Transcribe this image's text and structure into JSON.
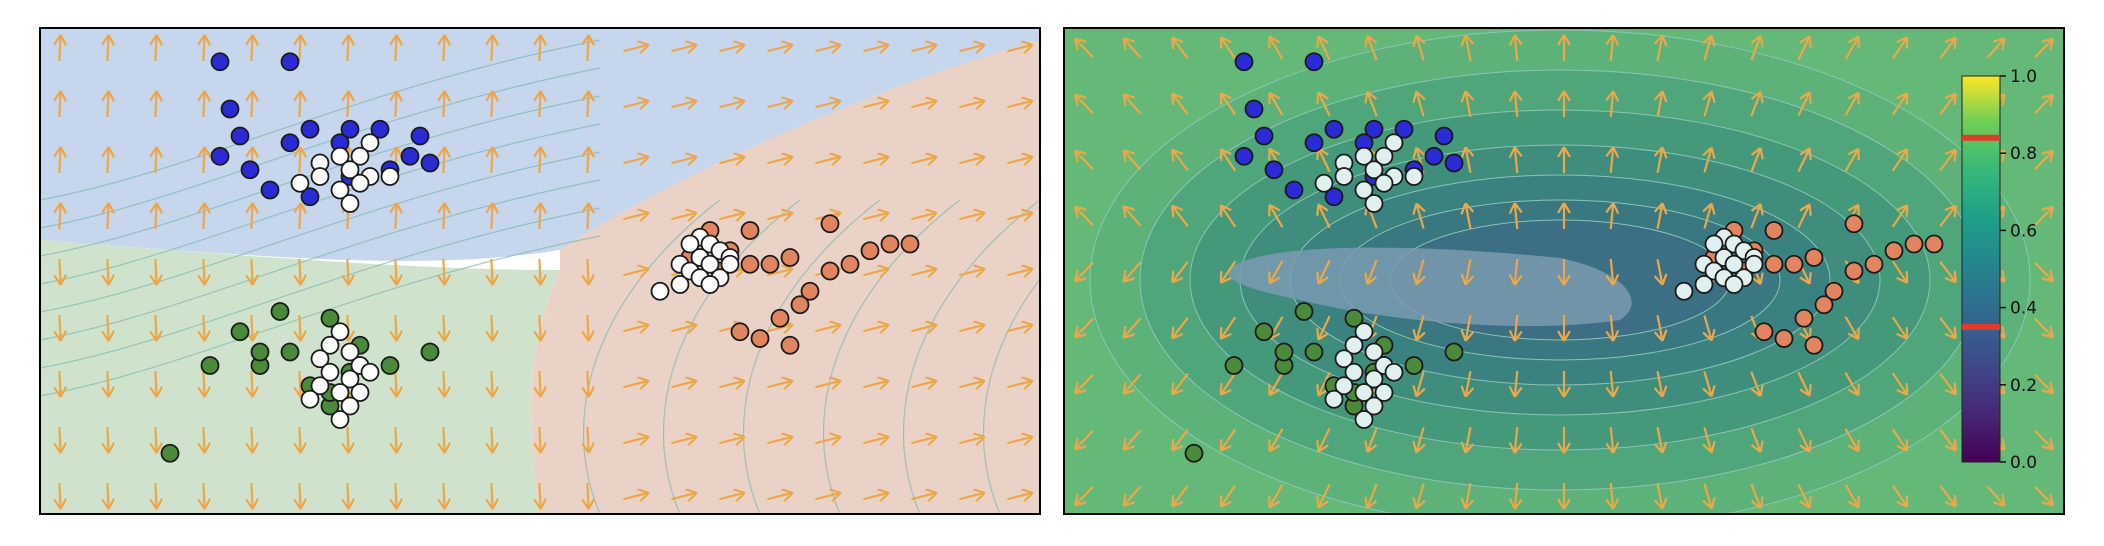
{
  "chart_data": [
    {
      "type": "scatter",
      "title": "",
      "xlabel": "",
      "ylabel": "",
      "background": "decision regions (blue, green, orange) with contour lines and an orange vector field",
      "region_colors": [
        "#c6d6ec",
        "#cfe3cc",
        "#ead2c6"
      ],
      "vector_color": "#eaa84a",
      "series": [
        {
          "color": "#2b2bd6",
          "points": [
            [
              -1.6,
              1.55
            ],
            [
              -1.25,
              1.55
            ],
            [
              -1.55,
              1.2
            ],
            [
              -1.5,
              1.0
            ],
            [
              -1.25,
              0.95
            ],
            [
              -1.15,
              1.05
            ],
            [
              -1.0,
              0.95
            ],
            [
              -0.95,
              0.7
            ],
            [
              -1.6,
              0.85
            ],
            [
              -1.35,
              0.6
            ],
            [
              -1.15,
              0.55
            ],
            [
              -0.8,
              1.05
            ],
            [
              -0.6,
              1.0
            ],
            [
              -0.75,
              0.75
            ],
            [
              -0.55,
              0.8
            ],
            [
              -1.45,
              0.75
            ],
            [
              -0.95,
              1.05
            ],
            [
              -0.65,
              0.85
            ]
          ]
        },
        {
          "color": "#4a8a3a",
          "points": [
            [
              -1.85,
              -1.35
            ],
            [
              -1.65,
              -0.7
            ],
            [
              -1.5,
              -0.45
            ],
            [
              -1.3,
              -0.3
            ],
            [
              -1.05,
              -0.35
            ],
            [
              -0.9,
              -0.55
            ],
            [
              -0.75,
              -0.7
            ],
            [
              -1.4,
              -0.7
            ],
            [
              -1.15,
              -0.85
            ],
            [
              -1.4,
              -0.6
            ],
            [
              -1.25,
              -0.6
            ],
            [
              -0.95,
              -0.75
            ],
            [
              -0.55,
              -0.6
            ],
            [
              -1.05,
              -1.0
            ],
            [
              -1.05,
              -0.9
            ]
          ]
        },
        {
          "color": "#e08560",
          "points": [
            [
              0.85,
              0.3
            ],
            [
              1.05,
              0.3
            ],
            [
              1.45,
              0.35
            ],
            [
              1.75,
              0.2
            ],
            [
              1.85,
              0.2
            ],
            [
              1.45,
              0.0
            ],
            [
              1.35,
              -0.15
            ],
            [
              1.3,
              -0.25
            ],
            [
              1.2,
              -0.35
            ],
            [
              1.25,
              -0.55
            ],
            [
              1.1,
              -0.5
            ],
            [
              1.0,
              -0.45
            ],
            [
              1.05,
              0.05
            ],
            [
              1.15,
              0.05
            ],
            [
              1.25,
              0.1
            ],
            [
              1.55,
              0.05
            ],
            [
              1.65,
              0.15
            ],
            [
              0.75,
              0.1
            ],
            [
              0.9,
              0.0
            ],
            [
              0.95,
              0.15
            ]
          ]
        },
        {
          "color": "#ffffff",
          "points": [
            [
              -0.85,
              0.95
            ],
            [
              -0.9,
              0.85
            ],
            [
              -1.0,
              0.85
            ],
            [
              -1.1,
              0.8
            ],
            [
              -0.95,
              0.75
            ],
            [
              -1.1,
              0.7
            ],
            [
              -0.85,
              0.7
            ],
            [
              -1.2,
              0.65
            ],
            [
              -1.0,
              0.6
            ],
            [
              -0.9,
              0.65
            ],
            [
              -0.95,
              0.5
            ],
            [
              -0.75,
              0.7
            ],
            [
              -1.0,
              -0.45
            ],
            [
              -1.05,
              -0.55
            ],
            [
              -0.95,
              -0.6
            ],
            [
              -1.1,
              -0.65
            ],
            [
              -0.9,
              -0.7
            ],
            [
              -0.95,
              -0.8
            ],
            [
              -1.05,
              -0.75
            ],
            [
              -1.1,
              -0.85
            ],
            [
              -1.0,
              -0.9
            ],
            [
              -0.9,
              -0.9
            ],
            [
              -0.95,
              -1.0
            ],
            [
              -1.0,
              -1.1
            ],
            [
              -1.15,
              -0.95
            ],
            [
              -0.85,
              -0.75
            ],
            [
              0.8,
              0.25
            ],
            [
              0.75,
              0.2
            ],
            [
              0.85,
              0.2
            ],
            [
              0.9,
              0.15
            ],
            [
              0.8,
              0.1
            ],
            [
              0.95,
              0.1
            ],
            [
              0.7,
              0.05
            ],
            [
              0.85,
              0.05
            ],
            [
              0.75,
              0.0
            ],
            [
              0.9,
              -0.05
            ],
            [
              0.8,
              -0.05
            ],
            [
              0.7,
              -0.1
            ],
            [
              0.6,
              -0.15
            ],
            [
              0.85,
              -0.1
            ],
            [
              0.95,
              0.05
            ]
          ]
        }
      ]
    },
    {
      "type": "heatmap",
      "title": "",
      "xlabel": "",
      "ylabel": "",
      "colormap": "viridis",
      "colorbar": {
        "ticks": [
          "0.0",
          "0.2",
          "0.4",
          "0.6",
          "0.8",
          "1.0"
        ],
        "min": 0.0,
        "max": 1.0,
        "markers": [
          0.35,
          0.84
        ],
        "marker_color": "#e03a2a"
      },
      "vector_color": "#eaa84a",
      "overlay": "same scatter points as panel 1"
    }
  ]
}
